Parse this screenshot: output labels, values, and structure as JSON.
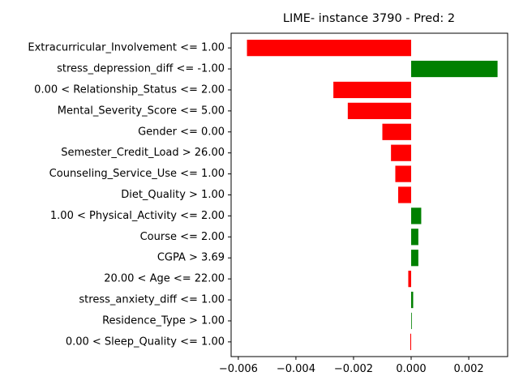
{
  "chart_data": {
    "type": "bar",
    "orientation": "horizontal",
    "title": "LIME- instance 3790 - Pred: 2",
    "xlabel": "",
    "ylabel": "",
    "xlim": [
      -0.00625,
      0.00335
    ],
    "xticks": [
      -0.006,
      -0.004,
      -0.002,
      0.0,
      0.002
    ],
    "xtick_labels": [
      "−0.006",
      "−0.004",
      "−0.002",
      "0.000",
      "0.002"
    ],
    "grid": false,
    "colors": {
      "positive": "#008000",
      "negative": "#ff0000"
    },
    "categories": [
      "Extracurricular_Involvement <= 1.00",
      "stress_depression_diff <= -1.00",
      "0.00 < Relationship_Status <= 2.00",
      "Mental_Severity_Score <= 5.00",
      "Gender <= 0.00",
      "Semester_Credit_Load > 26.00",
      "Counseling_Service_Use <= 1.00",
      "Diet_Quality > 1.00",
      "1.00 < Physical_Activity <= 2.00",
      "Course <= 2.00",
      "CGPA > 3.69",
      "20.00 < Age <= 22.00",
      "stress_anxiety_diff <= 1.00",
      "Residence_Type > 1.00",
      "0.00 < Sleep_Quality <= 1.00"
    ],
    "values": [
      -0.0057,
      0.003,
      -0.0027,
      -0.0022,
      -0.001,
      -0.0007,
      -0.00055,
      -0.00045,
      0.00035,
      0.00025,
      0.00025,
      -0.0001,
      7e-05,
      0.0,
      -3e-05
    ]
  }
}
